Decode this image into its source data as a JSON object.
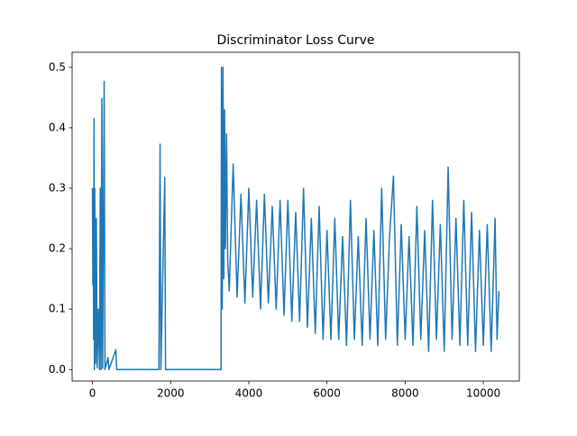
{
  "chart_data": {
    "type": "line",
    "title": "Discriminator Loss Curve",
    "color": "#1f77b4",
    "x": [
      0,
      10,
      20,
      30,
      40,
      50,
      60,
      80,
      100,
      120,
      150,
      180,
      200,
      220,
      240,
      260,
      300,
      320,
      400,
      420,
      600,
      620,
      1700,
      1730,
      1750,
      1850,
      1870,
      3290,
      3300,
      3320,
      3340,
      3360,
      3380,
      3400,
      3430,
      3460,
      3500,
      3600,
      3700,
      3800,
      3900,
      4000,
      4100,
      4200,
      4300,
      4400,
      4500,
      4600,
      4700,
      4800,
      4900,
      5000,
      5100,
      5200,
      5300,
      5400,
      5500,
      5600,
      5700,
      5800,
      5900,
      6000,
      6100,
      6200,
      6300,
      6400,
      6500,
      6600,
      6700,
      6800,
      6900,
      7000,
      7100,
      7200,
      7300,
      7400,
      7500,
      7600,
      7700,
      7800,
      7900,
      8000,
      8100,
      8200,
      8300,
      8400,
      8500,
      8600,
      8700,
      8800,
      8900,
      9000,
      9100,
      9200,
      9300,
      9400,
      9500,
      9600,
      9700,
      9800,
      9900,
      10000,
      10100,
      10200,
      10300,
      10350,
      10400
    ],
    "values": [
      0.3,
      0.14,
      0.3,
      0.05,
      0.415,
      0.0,
      0.3,
      0.01,
      0.25,
      0.003,
      0.1,
      0.0,
      0.3,
      0.0,
      0.448,
      0.002,
      0.477,
      0.0,
      0.02,
      0.0,
      0.033,
      0.0,
      0.0,
      0.373,
      0.0,
      0.318,
      0.0,
      0.0,
      0.5,
      0.1,
      0.5,
      0.15,
      0.43,
      0.2,
      0.39,
      0.18,
      0.13,
      0.34,
      0.12,
      0.29,
      0.11,
      0.3,
      0.12,
      0.28,
      0.1,
      0.29,
      0.11,
      0.27,
      0.1,
      0.28,
      0.09,
      0.28,
      0.08,
      0.26,
      0.08,
      0.3,
      0.07,
      0.25,
      0.06,
      0.27,
      0.05,
      0.23,
      0.05,
      0.25,
      0.05,
      0.22,
      0.04,
      0.28,
      0.05,
      0.22,
      0.04,
      0.25,
      0.05,
      0.23,
      0.04,
      0.3,
      0.05,
      0.22,
      0.32,
      0.04,
      0.24,
      0.05,
      0.22,
      0.04,
      0.27,
      0.05,
      0.23,
      0.03,
      0.28,
      0.05,
      0.24,
      0.03,
      0.335,
      0.05,
      0.25,
      0.04,
      0.28,
      0.04,
      0.26,
      0.03,
      0.23,
      0.04,
      0.24,
      0.03,
      0.25,
      0.05,
      0.13
    ],
    "xlim": [
      -520,
      10920
    ],
    "ylim": [
      -0.019,
      0.525
    ],
    "xticks": [
      0,
      2000,
      4000,
      6000,
      8000,
      10000
    ],
    "yticks": [
      {
        "value": 0.0,
        "label": "0.0"
      },
      0.1,
      0.2,
      0.3,
      0.4,
      0.5
    ]
  }
}
